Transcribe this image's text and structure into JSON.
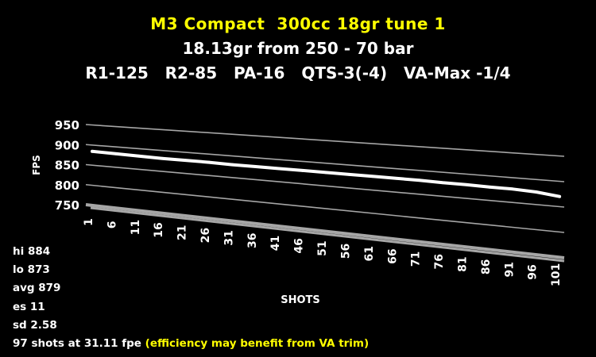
{
  "title_line1": "M3 Compact  300cc 18gr tune 1",
  "title_line2": "18.13gr from 250 - 70 bar",
  "title_line3": "R1-125   R2-85   PA-16   QTS-3(-4)   VA-Max -1/4",
  "stats": {
    "hi": "hi 884",
    "lo": "lo 873",
    "avg": "avg 879",
    "es": "es 11",
    "sd": "sd 2.58",
    "shots_line": "97 shots at 31.11 fpe ",
    "note": "(efficiency may benefit from VA trim)"
  },
  "colors": {
    "title_highlight": "#ffff00",
    "series": "#ffffff",
    "gridlines": "#a6a6a6",
    "background": "#000000"
  },
  "chart_data": {
    "type": "line",
    "style": "3d-perspective",
    "title": "M3 Compact  300cc 18gr tune 1",
    "xlabel": "SHOTS",
    "ylabel": "FPS",
    "ylim": [
      750,
      950
    ],
    "yticks": [
      750,
      800,
      850,
      900,
      950
    ],
    "x_tick_labels": [
      "1",
      "6",
      "11",
      "16",
      "21",
      "26",
      "31",
      "36",
      "41",
      "46",
      "51",
      "56",
      "61",
      "66",
      "71",
      "76",
      "81",
      "86",
      "91",
      "96",
      "101"
    ],
    "grid": true,
    "legend": "none",
    "series": [
      {
        "x": [
          1,
          6,
          11,
          16,
          21,
          26,
          31,
          36,
          41,
          46,
          51,
          56,
          61,
          66,
          71,
          76,
          81,
          86,
          91,
          96,
          101
        ],
        "values": [
          883,
          882,
          881,
          880,
          880,
          880,
          879,
          879,
          879,
          879,
          879,
          879,
          879,
          879,
          879,
          878,
          878,
          877,
          877,
          875,
          870
        ]
      }
    ]
  }
}
